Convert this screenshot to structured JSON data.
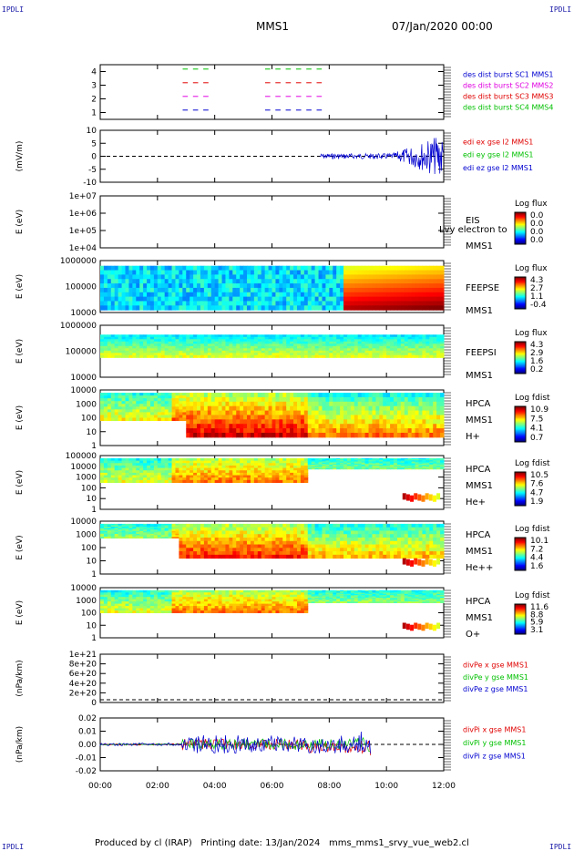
{
  "corner_label": "IPDLI",
  "header": {
    "spacecraft": "MMS1",
    "date": "07/Jan/2020 00:00"
  },
  "footer": {
    "produced_by": "Produced by cl (IRAP)",
    "printing_date": "Printing date: 13/Jan/2024",
    "file": "mms_mms1_srvy_vue_web2.cl"
  },
  "colors": {
    "red": "#e00000",
    "green": "#00c000",
    "blue": "#0000d0",
    "magenta": "#e000e0"
  },
  "chart_data": [
    {
      "type": "line",
      "id": "availability",
      "ylabel": "",
      "yticks": [
        "1",
        "2",
        "3",
        "4"
      ],
      "legend": [
        {
          "label": "des dist burst SC1 MMS1",
          "color": "#0000d0"
        },
        {
          "label": "des dist burst SC2 MMS2",
          "color": "#e000e0"
        },
        {
          "label": "des dist burst SC3 MMS3",
          "color": "#e00000"
        },
        {
          "label": "des dist burst SC4 MMS4",
          "color": "#00c000"
        }
      ]
    },
    {
      "type": "line",
      "id": "edi",
      "ylabel": "(mV/m)",
      "yticks": [
        "-10",
        "-5",
        "0",
        "5",
        "10"
      ],
      "ylim": [
        -10,
        10
      ],
      "legend": [
        {
          "label": "edi ex gse l2 MMS1",
          "color": "#e00000"
        },
        {
          "label": "edi ey gse l2 MMS1",
          "color": "#00c000"
        },
        {
          "label": "edi ez gse l2 MMS1",
          "color": "#0000d0"
        }
      ]
    },
    {
      "type": "heatmap",
      "id": "eis",
      "ylabel": "E (eV)",
      "yticks": [
        "1e+04",
        "1e+05",
        "1e+06",
        "1e+07"
      ],
      "side": [
        "EIS",
        "MMS1"
      ],
      "overlay": "Lvy electron to",
      "cbar_title": "Log flux",
      "cbar_ticks": [
        "0.0",
        "0.0",
        "0.0",
        "0.0"
      ]
    },
    {
      "type": "heatmap",
      "id": "feepse",
      "ylabel": "E (eV)",
      "yticks": [
        "10000",
        "100000",
        "1000000"
      ],
      "side": [
        "FEEPSE",
        "MMS1"
      ],
      "cbar_title": "Log flux",
      "cbar_ticks": [
        "4.3",
        "2.7",
        "1.1",
        "-0.4"
      ]
    },
    {
      "type": "heatmap",
      "id": "feepsi",
      "ylabel": "E (eV)",
      "yticks": [
        "10000",
        "100000",
        "1000000"
      ],
      "side": [
        "FEEPSI",
        "MMS1"
      ],
      "cbar_title": "Log flux",
      "cbar_ticks": [
        "4.3",
        "2.9",
        "1.6",
        "0.2"
      ]
    },
    {
      "type": "heatmap",
      "id": "hpca_h",
      "ylabel": "E (eV)",
      "yticks": [
        "1",
        "10",
        "100",
        "1000",
        "10000"
      ],
      "side": [
        "HPCA",
        "MMS1",
        "H+"
      ],
      "cbar_title": "Log fdist",
      "cbar_ticks": [
        "10.9",
        "7.5",
        "4.1",
        "0.7"
      ]
    },
    {
      "type": "heatmap",
      "id": "hpca_he",
      "ylabel": "E (eV)",
      "yticks": [
        "1",
        "10",
        "100",
        "1000",
        "10000",
        "100000"
      ],
      "side": [
        "HPCA",
        "MMS1",
        "He+"
      ],
      "cbar_title": "Log fdist",
      "cbar_ticks": [
        "10.5",
        "7.6",
        "4.7",
        "1.9"
      ]
    },
    {
      "type": "heatmap",
      "id": "hpca_hepp",
      "ylabel": "E (eV)",
      "yticks": [
        "1",
        "10",
        "100",
        "1000",
        "10000"
      ],
      "side": [
        "HPCA",
        "MMS1",
        "He++"
      ],
      "cbar_title": "Log fdist",
      "cbar_ticks": [
        "10.1",
        "7.2",
        "4.4",
        "1.6"
      ]
    },
    {
      "type": "heatmap",
      "id": "hpca_o",
      "ylabel": "E (eV)",
      "yticks": [
        "1",
        "10",
        "100",
        "1000",
        "10000"
      ],
      "side": [
        "HPCA",
        "MMS1",
        "O+"
      ],
      "cbar_title": "Log fdist",
      "cbar_ticks": [
        "11.6",
        "8.8",
        "5.9",
        "3.1"
      ]
    },
    {
      "type": "line",
      "id": "divpe",
      "ylabel": "(nPa/km)",
      "yticks": [
        "0",
        "2e+20",
        "4e+20",
        "6e+20",
        "8e+20",
        "1e+21"
      ],
      "legend": [
        {
          "label": "divPe x gse MMS1",
          "color": "#e00000"
        },
        {
          "label": "divPe y gse MMS1",
          "color": "#00c000"
        },
        {
          "label": "divPe z gse MMS1",
          "color": "#0000d0"
        }
      ]
    },
    {
      "type": "line",
      "id": "divpi",
      "ylabel": "(nPa/km)",
      "yticks": [
        "-0.02",
        "-0.01",
        "0.00",
        "0.01",
        "0.02"
      ],
      "ylim": [
        -0.02,
        0.02
      ],
      "legend": [
        {
          "label": "divPi x gse MMS1",
          "color": "#e00000"
        },
        {
          "label": "divPi y gse MMS1",
          "color": "#00c000"
        },
        {
          "label": "divPi z gse MMS1",
          "color": "#0000d0"
        }
      ]
    }
  ],
  "xaxis": {
    "ticks": [
      "00:00",
      "02:00",
      "04:00",
      "06:00",
      "08:00",
      "10:00",
      "12:00"
    ]
  }
}
